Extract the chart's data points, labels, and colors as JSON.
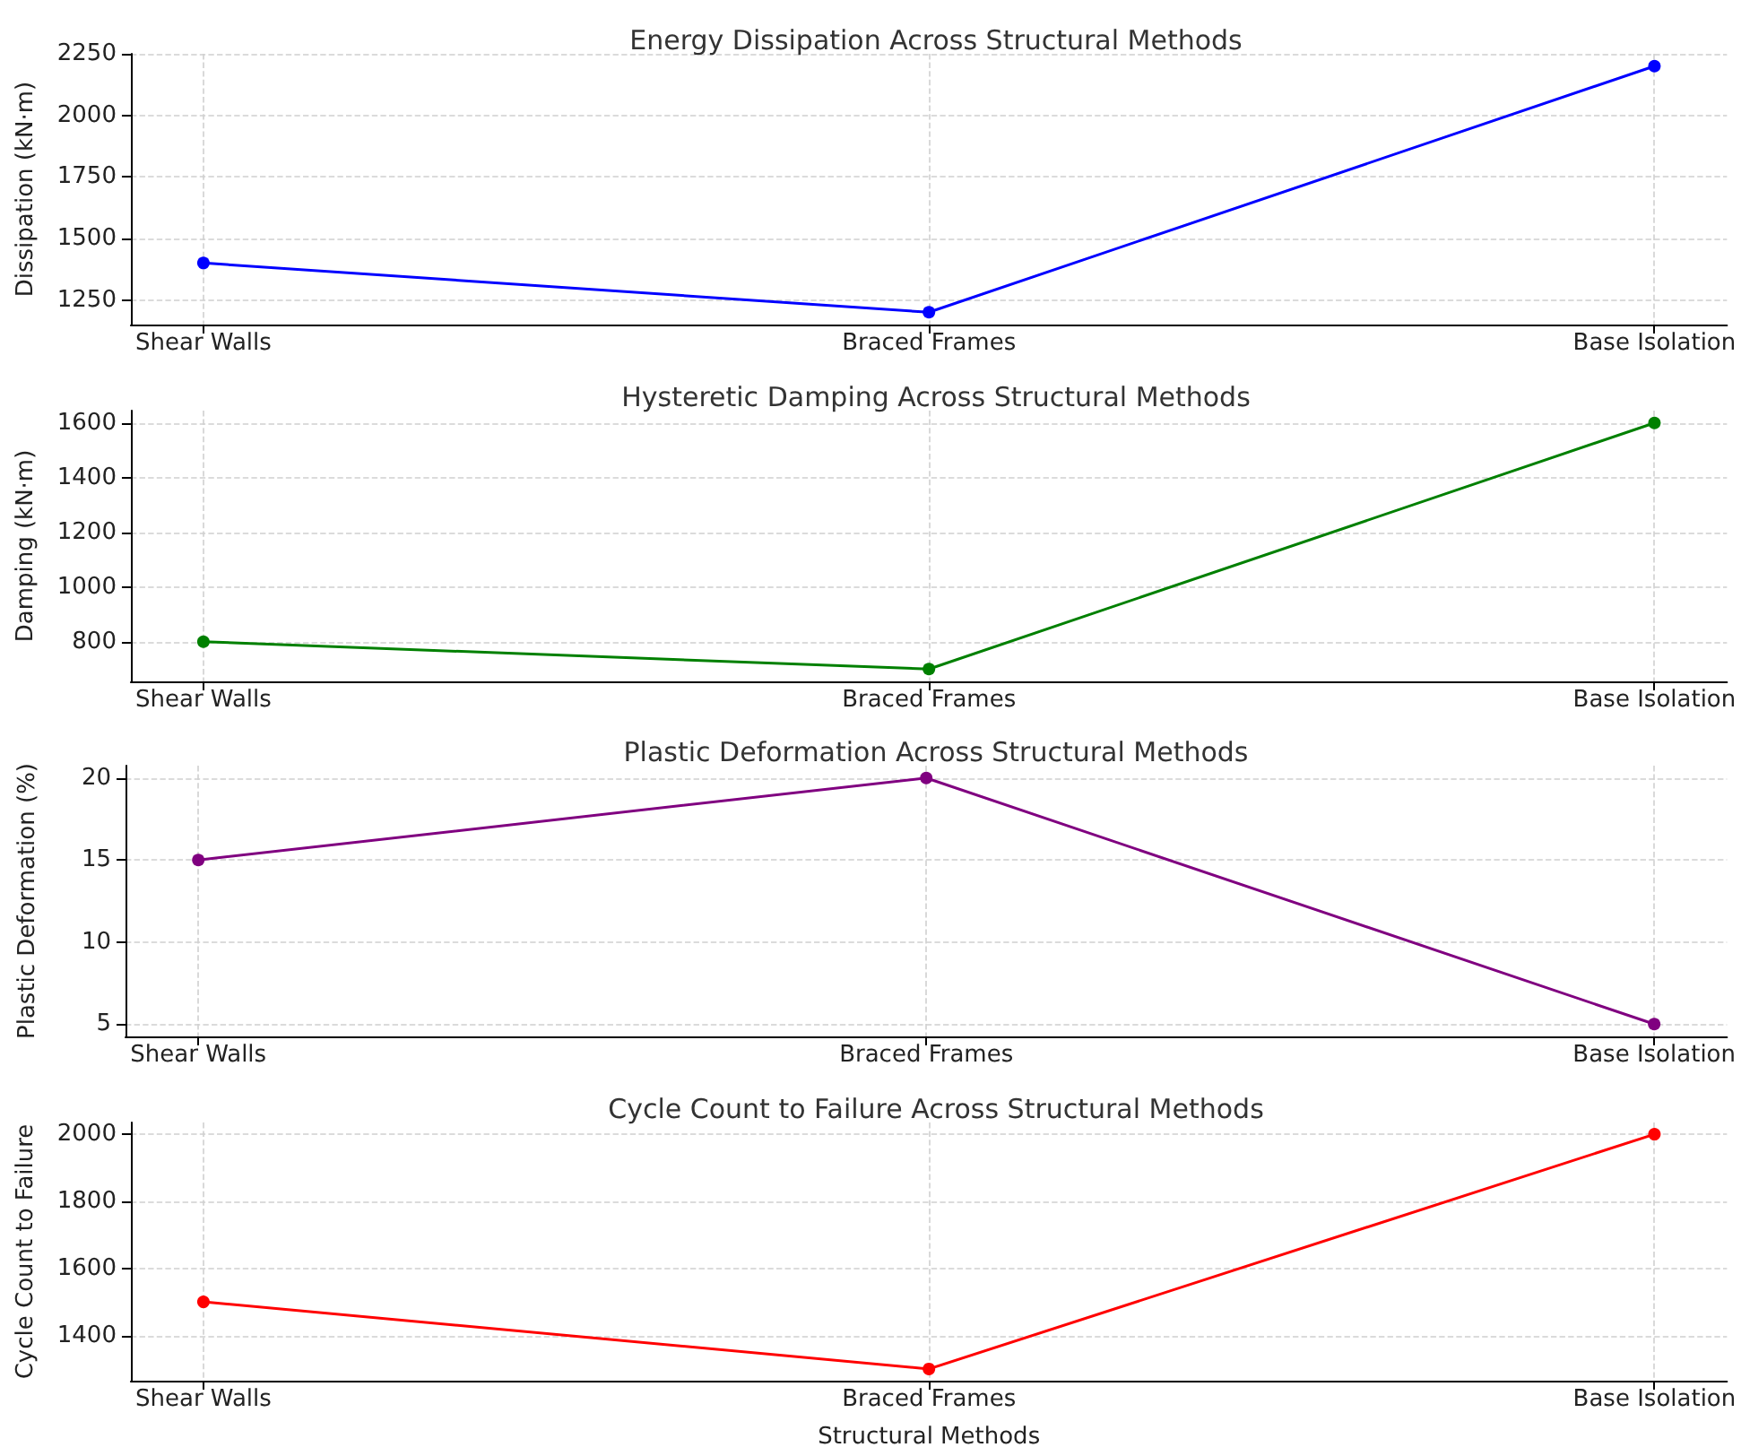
{
  "chart_data": [
    {
      "type": "line",
      "title": "Energy Dissipation Across Structural Methods",
      "ylabel": "Dissipation (kN·m)",
      "categories": [
        "Shear Walls",
        "Braced Frames",
        "Base Isolation"
      ],
      "series": [
        {
          "color": "#0000ff",
          "values": [
            1400,
            1200,
            2200
          ]
        }
      ],
      "ylim": [
        1150,
        2250
      ],
      "yticks": [
        1250,
        1500,
        1750,
        2000,
        2250
      ],
      "grid": true,
      "marker": "circle",
      "line_style": "solid"
    },
    {
      "type": "line",
      "title": "Hysteretic Damping Across Structural Methods",
      "ylabel": "Damping (kN·m)",
      "categories": [
        "Shear Walls",
        "Braced Frames",
        "Base Isolation"
      ],
      "series": [
        {
          "color": "#008000",
          "values": [
            800,
            700,
            1600
          ]
        }
      ],
      "ylim": [
        655,
        1645
      ],
      "yticks": [
        800,
        1000,
        1200,
        1400,
        1600
      ],
      "grid": true,
      "marker": "circle",
      "line_style": "solid"
    },
    {
      "type": "line",
      "title": "Plastic Deformation Across Structural Methods",
      "ylabel": "Plastic Deformation (%)",
      "categories": [
        "Shear Walls",
        "Braced Frames",
        "Base Isolation"
      ],
      "series": [
        {
          "color": "#800080",
          "values": [
            15,
            20,
            5
          ]
        }
      ],
      "ylim": [
        4.25,
        20.75
      ],
      "yticks": [
        5,
        10,
        15,
        20
      ],
      "grid": true,
      "marker": "circle",
      "line_style": "solid"
    },
    {
      "type": "line",
      "title": "Cycle Count to Failure Across Structural Methods",
      "ylabel": "Cycle Count to Failure",
      "xlabel": "Structural Methods",
      "categories": [
        "Shear Walls",
        "Braced Frames",
        "Base Isolation"
      ],
      "series": [
        {
          "color": "#ff0000",
          "values": [
            1500,
            1300,
            2000
          ]
        }
      ],
      "ylim": [
        1265,
        2035
      ],
      "yticks": [
        1400,
        1600,
        1800,
        2000
      ],
      "grid": true,
      "marker": "circle",
      "line_style": "solid"
    }
  ]
}
